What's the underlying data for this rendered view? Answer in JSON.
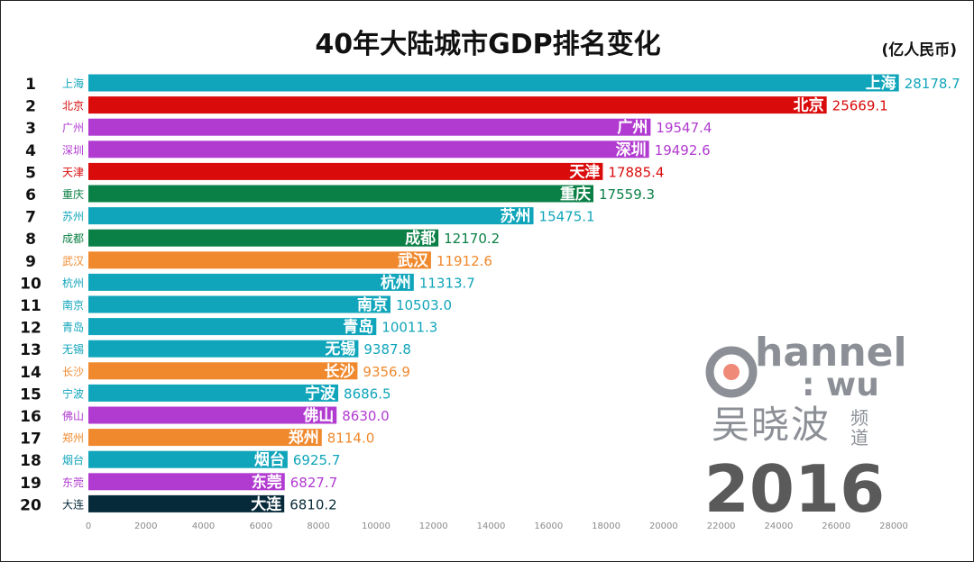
{
  "chart_data": {
    "type": "bar",
    "orientation": "horizontal",
    "title": "40年大陆城市GDP排名变化",
    "unit_label": "(亿人民币)",
    "year": "2016",
    "xlim": [
      0,
      28000
    ],
    "x_ticks": [
      0,
      2000,
      4000,
      6000,
      8000,
      10000,
      12000,
      14000,
      16000,
      18000,
      20000,
      22000,
      24000,
      26000,
      28000
    ],
    "ranks": [
      1,
      2,
      3,
      4,
      5,
      6,
      7,
      8,
      9,
      10,
      11,
      12,
      13,
      14,
      15,
      16,
      17,
      18,
      19,
      20
    ],
    "categories": [
      "上海",
      "北京",
      "广州",
      "深圳",
      "天津",
      "重庆",
      "苏州",
      "成都",
      "武汉",
      "杭州",
      "南京",
      "青岛",
      "无锡",
      "长沙",
      "宁波",
      "佛山",
      "郑州",
      "烟台",
      "东莞",
      "大连"
    ],
    "values": [
      28178.7,
      25669.1,
      19547.4,
      19492.6,
      17885.4,
      17559.3,
      15475.1,
      12170.2,
      11912.6,
      11313.7,
      10503.0,
      10011.3,
      9387.8,
      9356.9,
      8686.5,
      8630.0,
      8114.0,
      6925.7,
      6827.7,
      6810.2
    ],
    "value_labels": [
      "28178.7",
      "25669.1",
      "19547.4",
      "19492.6",
      "17885.4",
      "17559.3",
      "15475.1",
      "12170.2",
      "11912.6",
      "11313.7",
      "10503.0",
      "10011.3",
      "9387.8",
      "9356.9",
      "8686.5",
      "8630.0",
      "8114.0",
      "6925.7",
      "6827.7",
      "6810.2"
    ],
    "colors": [
      "#10a5ba",
      "#d90b0b",
      "#b13bd0",
      "#b13bd0",
      "#d90b0b",
      "#0b8046",
      "#10a5ba",
      "#0b8046",
      "#f0892d",
      "#10a5ba",
      "#10a5ba",
      "#10a5ba",
      "#10a5ba",
      "#f0892d",
      "#10a5ba",
      "#b13bd0",
      "#f0892d",
      "#10a5ba",
      "#b13bd0",
      "#072a3a"
    ]
  },
  "watermark": {
    "logo_text_top": "hannel",
    "logo_text_sub": ": wu",
    "logo_cn": "吴晓波",
    "logo_cn_side": [
      "频",
      "道"
    ],
    "logo_color": "#8c9096",
    "logo_dot_color": "#f08a78"
  },
  "colors": {
    "year": "#5a5a5a",
    "axis_tick": "#8a8a8a",
    "text": "#111111"
  }
}
